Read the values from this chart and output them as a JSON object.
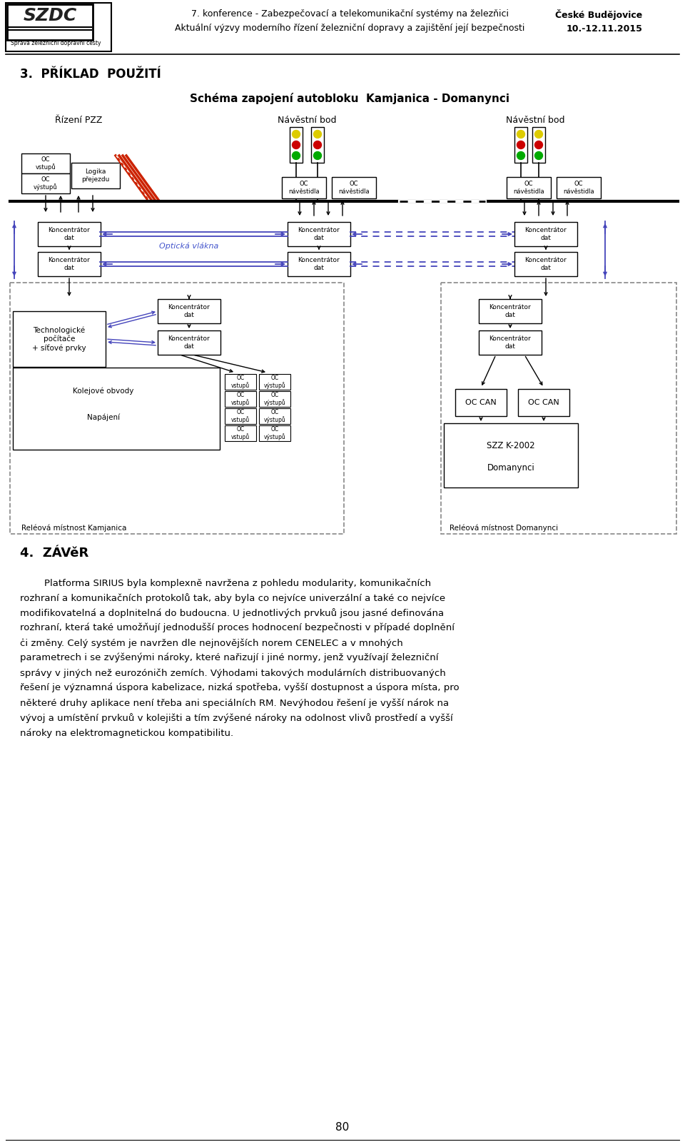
{
  "page_bg": "#ffffff",
  "header_line1": "7. konference - Zabezpečovací a telekomunikační systémy na železňici",
  "header_line2": "Aktuální výzvy moderního řízení železniční dopravy a zajištění její bezpečnosti",
  "header_right1": "České Budějovice",
  "header_right2": "10.-12.11.2015",
  "section_title": "3.  PŘÍKLAD  POUŽITÍ",
  "diagram_title": "Schéma zapojení autobloku  Kamjanica - Domanynci",
  "label_rizeni": "Řízení PZZ",
  "label_navbod1": "Návěstní bod",
  "label_navbod2": "Návěstní bod",
  "label_optika": "Optická vlákna",
  "label_tech": "Technologické\npočítače\n+ síťové prvky",
  "label_kolejove": "Kolejové obvody",
  "label_napajeni": "Napájení",
  "label_relkam": "Reléová místnost Kamjanica",
  "label_reldom": "Reléová místnost Domanynci",
  "label_konc": "Koncentrátor\ndat",
  "label_oc_vstupu": "OC\nvstupů",
  "label_oc_vystupu": "OC\nvýstupů",
  "label_oc_nav": "OC\nnávěstidla",
  "label_logika": "Logika\npřejezdu",
  "label_occan": "OC CAN",
  "label_szz": "SZZ K-2002",
  "label_domanynci": "Domanynci",
  "zavr_title": "4.  ZÁVěR",
  "para_line1": "        Platforma SIRIUS byla komplexně navržena z pohledu modularity, komunikačních",
  "para_line2": "rozhraní a komunikačních protokolů tak, aby byla co nejvíce univerzální a také co nejvíce",
  "para_line3": "modifikovatelná a doplnitelná do budoucna. U jednotlivých prvkuů jsou jasné definována",
  "para_line4": "rozhraní, která také umožňují jednodušší proces hodnocení bezpečnosti v případé doplnění",
  "para_line5": "c̍i změny. Celý systém je navržen dle nejnovějších norem CENELEC a v mnohých",
  "para_line6": "parametrech i se zvýšenými nároky, které nařizují i jiné normy, jenž využívají železniční",
  "para_line7": "správy v jiných než eurozóničh zemích. Výhodami takových modulárních distribuovaných",
  "para_line8": "řešení je významná úspora kabelizace, nizká spotřeba, vyšší dostupnost a úspora místa, pro",
  "para_line9": "některé druhy aplikace není třeba ani speciálních RM. Nevýhodou řešení je vyšší nárok na",
  "para_line10": "vývoj a umístění prvkuů v kolejišti a tím zvýšené nároky na odolnost vlivů prostředí a vyšší",
  "para_line11": "nároky na elektromagnetickou kompatibilitu.",
  "page_number": "80",
  "blue_color": "#4444bb",
  "dashed_color": "#888888",
  "optical_text_color": "#4455cc",
  "signal_yellow": "#ddcc00",
  "signal_red": "#cc0000",
  "signal_green": "#00aa00",
  "barrier_red": "#cc2200"
}
